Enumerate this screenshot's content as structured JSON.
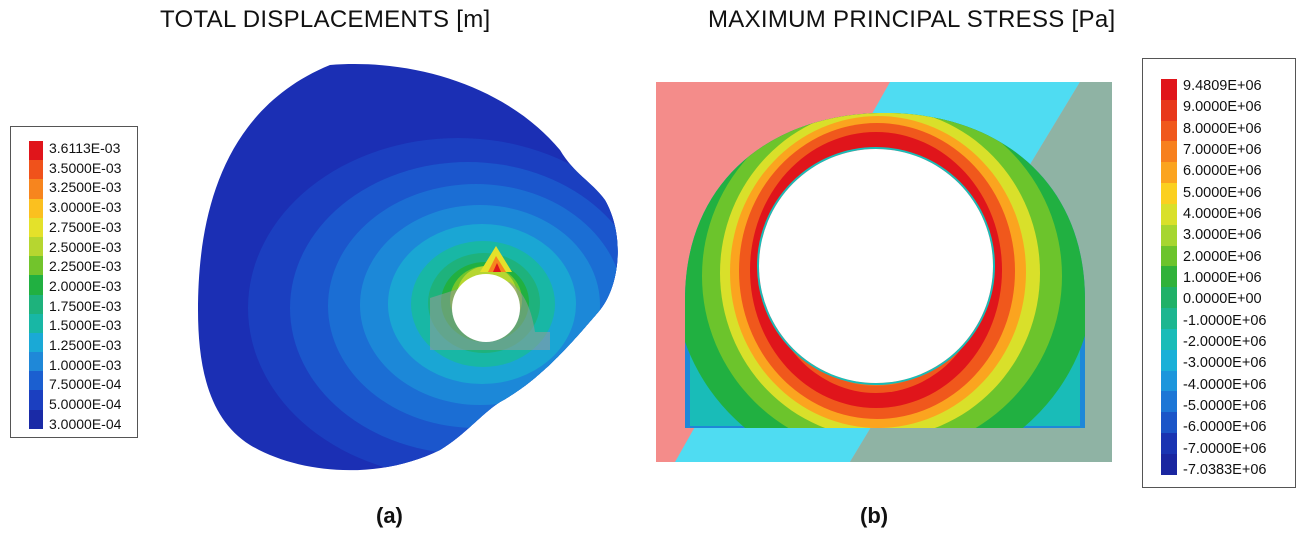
{
  "figure_a": {
    "title": "TOTAL DISPLACEMENTS [m]",
    "caption": "(a)",
    "legend": {
      "labels": [
        "3.6113E-03",
        "3.5000E-03",
        "3.2500E-03",
        "3.0000E-03",
        "2.7500E-03",
        "2.5000E-03",
        "2.2500E-03",
        "2.0000E-03",
        "1.7500E-03",
        "1.5000E-03",
        "1.2500E-03",
        "1.0000E-03",
        "7.5000E-04",
        "5.0000E-04",
        "3.0000E-04"
      ],
      "colors": [
        "#e0151b",
        "#f0521b",
        "#f7851e",
        "#fbc01f",
        "#e4e12a",
        "#b6d630",
        "#72c42c",
        "#21b041",
        "#1eb27c",
        "#18b7a5",
        "#1aa9d6",
        "#1f88d8",
        "#1b5fd0",
        "#1b3fc0",
        "#1a2aa6"
      ]
    }
  },
  "figure_b": {
    "title": "MAXIMUM PRINCIPAL STRESS [Pa]",
    "caption": "(b)",
    "legend": {
      "labels": [
        "9.4809E+06",
        "9.0000E+06",
        "8.0000E+06",
        "7.0000E+06",
        "6.0000E+06",
        "5.0000E+06",
        "4.0000E+06",
        "3.0000E+06",
        "2.0000E+06",
        "1.0000E+06",
        "0.0000E+00",
        "-1.0000E+06",
        "-2.0000E+06",
        "-3.0000E+06",
        "-4.0000E+06",
        "-5.0000E+06",
        "-6.0000E+06",
        "-7.0000E+06",
        "-7.0383E+06"
      ],
      "colors": [
        "#e0151b",
        "#e8381b",
        "#f0581c",
        "#f7801e",
        "#fba41f",
        "#fbd01f",
        "#d9e02a",
        "#a6d630",
        "#6cc42c",
        "#30b23a",
        "#1fb168",
        "#1cb690",
        "#19bcb8",
        "#1ab0d8",
        "#1c96dc",
        "#1c76d6",
        "#1b55c8",
        "#1a34b2",
        "#1a26a0"
      ]
    },
    "zone_colors": {
      "left": "#f48c8a",
      "right": "#8fb3a4",
      "band": "#4fdcf2"
    }
  }
}
